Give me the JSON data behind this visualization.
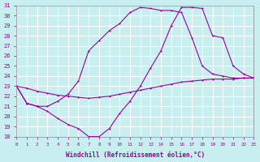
{
  "xlabel": "Windchill (Refroidissement éolien,°C)",
  "ylabel": "",
  "bg_color": "#c8eef0",
  "line_color": "#990099",
  "grid_color": "#ffffff",
  "xmin": 0,
  "xmax": 23,
  "ymin": 18,
  "ymax": 31,
  "line1_x": [
    0,
    1,
    2,
    3,
    4,
    5,
    6,
    7,
    8,
    9,
    10,
    11,
    12,
    13,
    14,
    15,
    16,
    17,
    18,
    19,
    20,
    21,
    22,
    23
  ],
  "line1_y": [
    23.0,
    22.8,
    22.5,
    22.3,
    22.1,
    22.0,
    21.9,
    21.8,
    21.9,
    22.0,
    22.2,
    22.4,
    22.6,
    22.8,
    23.0,
    23.2,
    23.4,
    23.5,
    23.6,
    23.7,
    23.7,
    23.7,
    23.8,
    23.8
  ],
  "line2_x": [
    0,
    1,
    2,
    3,
    4,
    5,
    6,
    7,
    8,
    9,
    10,
    11,
    12,
    13,
    14,
    15,
    16,
    17,
    18,
    19,
    20,
    21,
    22,
    23
  ],
  "line2_y": [
    23.0,
    21.3,
    21.0,
    21.0,
    21.5,
    22.2,
    23.5,
    26.5,
    27.5,
    28.5,
    29.2,
    30.3,
    30.8,
    30.7,
    30.5,
    30.5,
    30.3,
    27.8,
    25.0,
    24.2,
    24.0,
    23.8,
    23.8,
    23.8
  ],
  "line3_x": [
    0,
    1,
    2,
    3,
    4,
    5,
    6,
    7,
    8,
    9,
    10,
    11,
    12,
    13,
    14,
    15,
    16,
    17,
    18,
    19,
    20,
    21,
    22,
    23
  ],
  "line3_y": [
    23.0,
    21.3,
    21.0,
    20.5,
    19.8,
    19.2,
    18.8,
    18.0,
    18.0,
    18.8,
    20.3,
    21.5,
    23.0,
    24.8,
    26.5,
    29.0,
    30.8,
    30.8,
    30.7,
    28.0,
    27.8,
    25.0,
    24.2,
    23.8
  ]
}
